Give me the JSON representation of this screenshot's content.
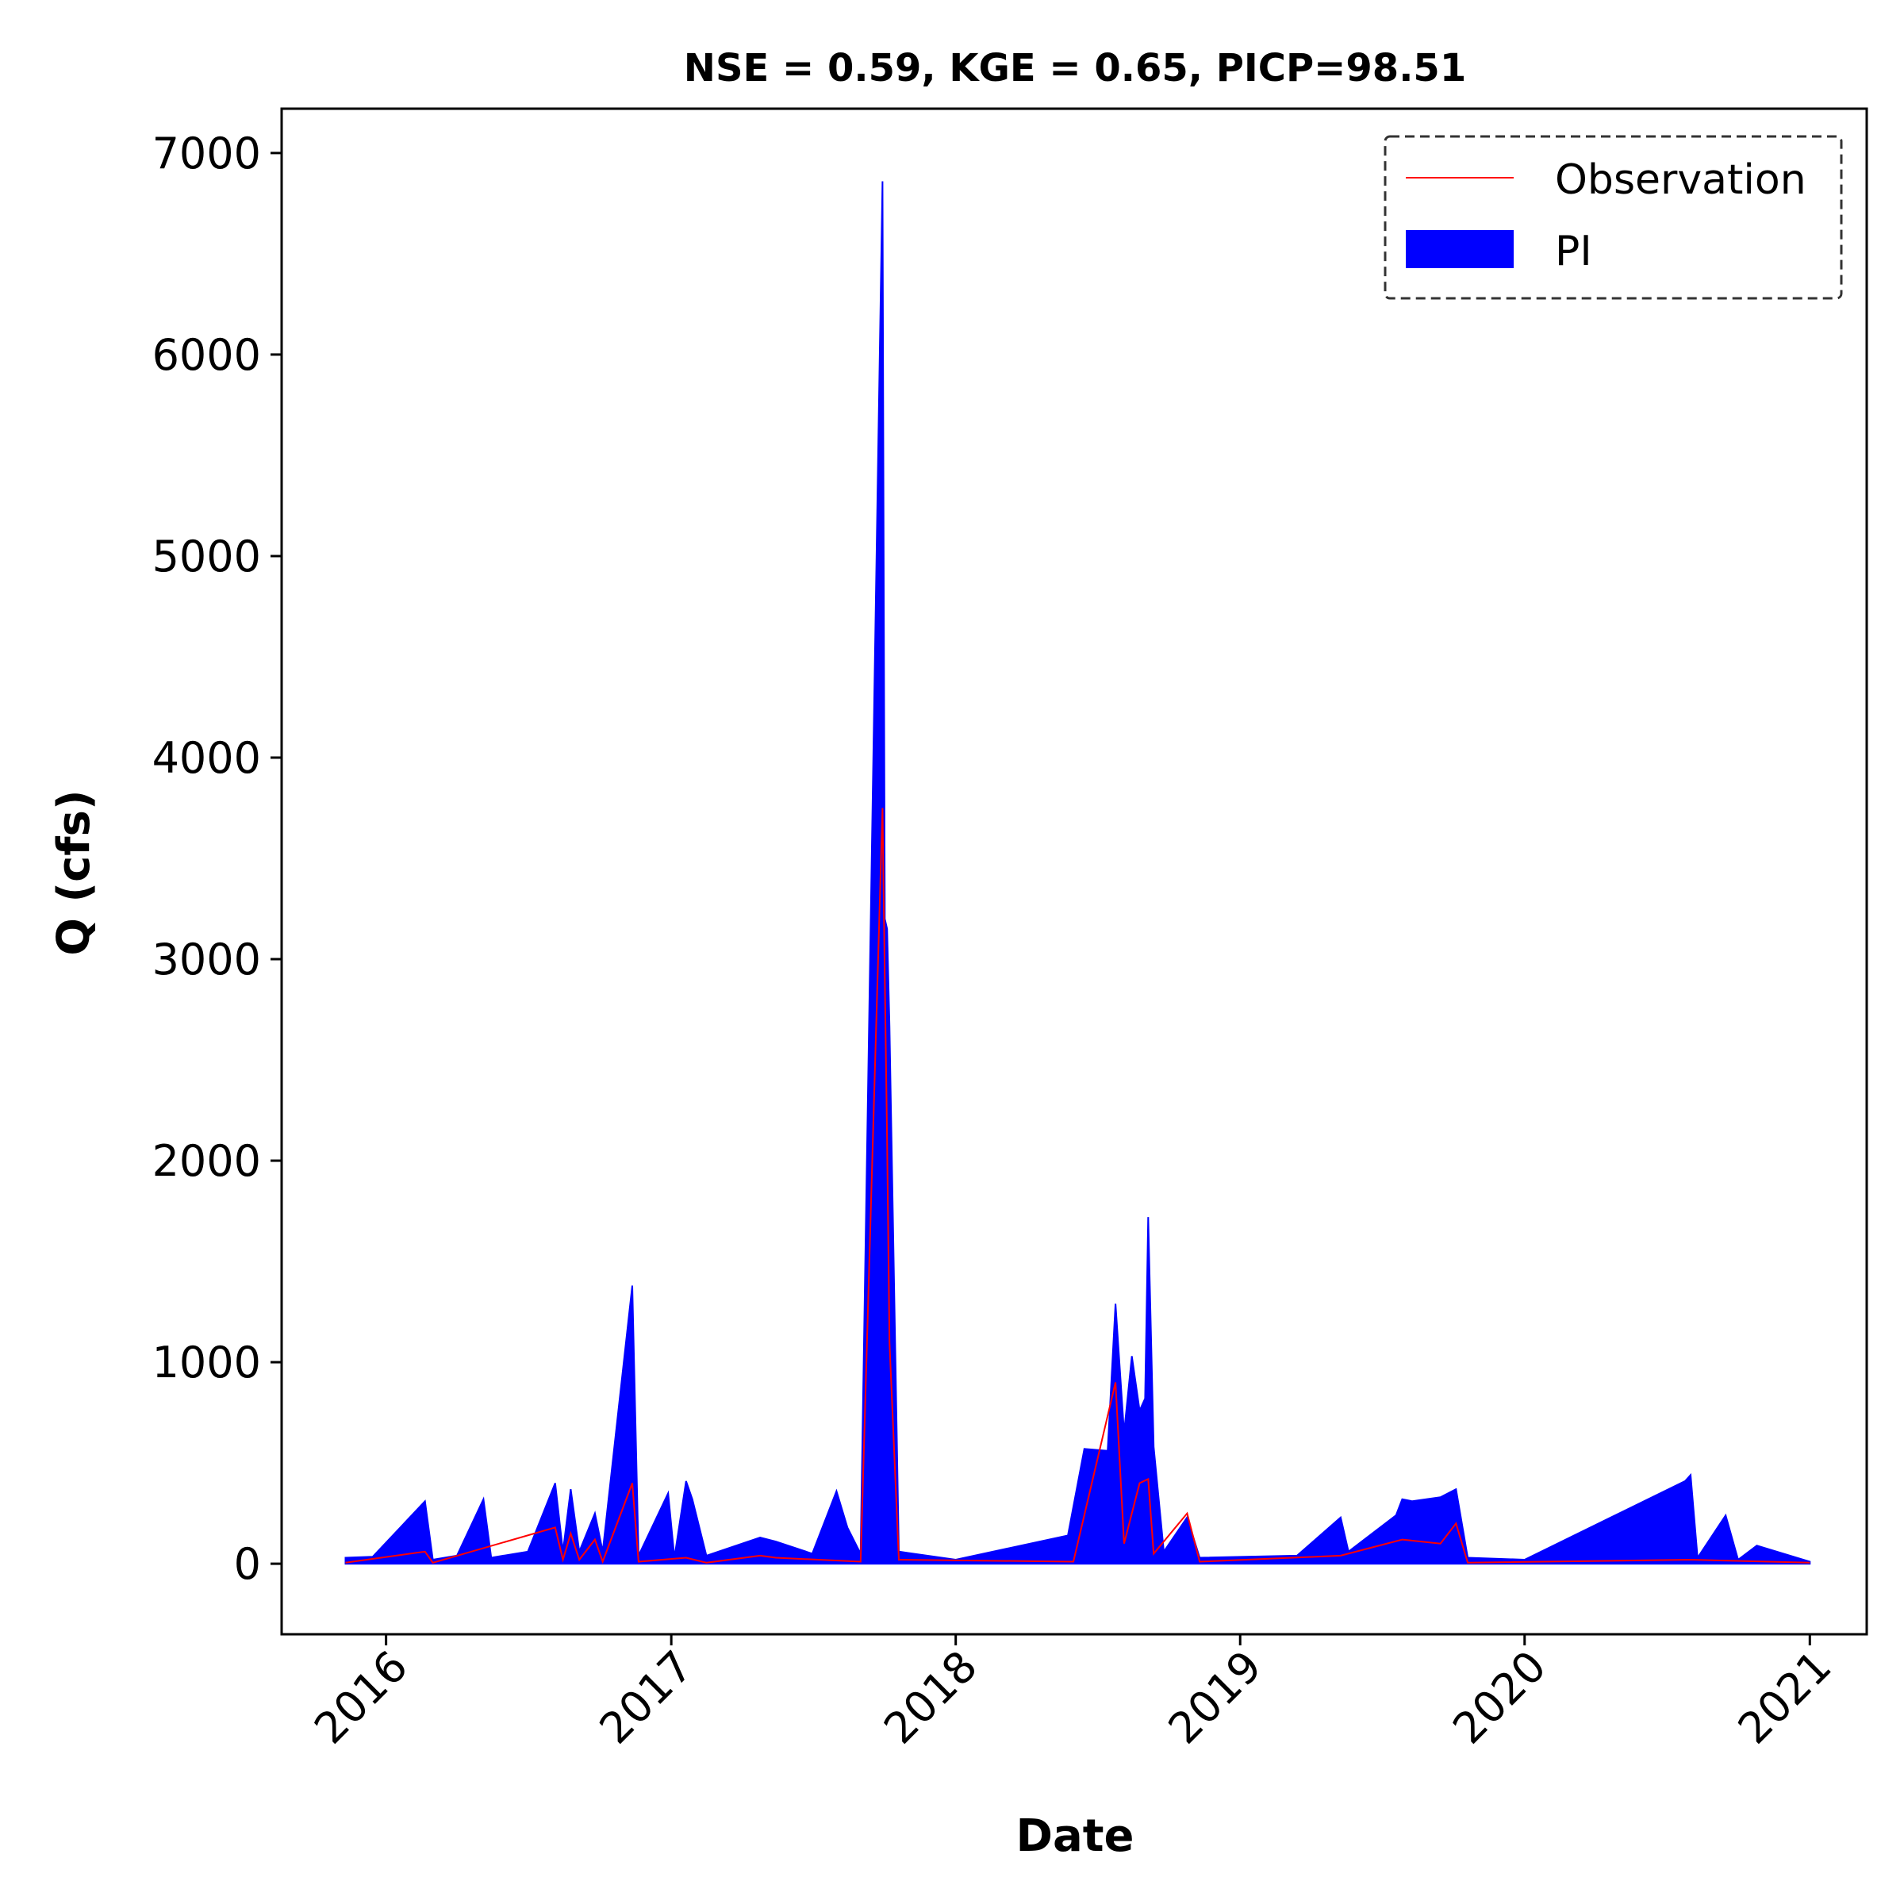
{
  "chart_data": {
    "type": "line",
    "title": "NSE = 0.59, KGE = 0.65, PICP=98.51",
    "xlabel": "Date",
    "ylabel": "Q (cfs)",
    "xlim": [
      "2015-08-20",
      "2021-03-15"
    ],
    "ylim": [
      -350,
      7220
    ],
    "x_ticks": [
      "2016",
      "2017",
      "2018",
      "2019",
      "2020",
      "2021"
    ],
    "y_ticks": [
      "0",
      "1000",
      "2000",
      "3000",
      "4000",
      "5000",
      "6000",
      "7000"
    ],
    "legend": {
      "position": "top-right",
      "border": "dashed"
    },
    "series": [
      {
        "name": "PI",
        "kind": "band",
        "color": "#0000ff",
        "points": [
          [
            "2015-11-10",
            0,
            30
          ],
          [
            "2015-12-15",
            0,
            35
          ],
          [
            "2016-02-20",
            0,
            310
          ],
          [
            "2016-03-01",
            0,
            20
          ],
          [
            "2016-04-01",
            0,
            40
          ],
          [
            "2016-05-05",
            0,
            320
          ],
          [
            "2016-05-15",
            0,
            30
          ],
          [
            "2016-07-01",
            0,
            60
          ],
          [
            "2016-08-05",
            0,
            400
          ],
          [
            "2016-08-15",
            0,
            60
          ],
          [
            "2016-08-25",
            0,
            370
          ],
          [
            "2016-09-05",
            0,
            60
          ],
          [
            "2016-09-25",
            0,
            250
          ],
          [
            "2016-10-05",
            0,
            60
          ],
          [
            "2016-11-12",
            0,
            1380
          ],
          [
            "2016-11-20",
            0,
            40
          ],
          [
            "2016-12-28",
            0,
            350
          ],
          [
            "2017-01-05",
            0,
            30
          ],
          [
            "2017-01-20",
            0,
            410
          ],
          [
            "2017-01-28",
            0,
            320
          ],
          [
            "2017-02-15",
            0,
            40
          ],
          [
            "2017-04-25",
            0,
            130
          ],
          [
            "2017-05-15",
            0,
            110
          ],
          [
            "2017-07-01",
            0,
            50
          ],
          [
            "2017-08-01",
            0,
            360
          ],
          [
            "2017-08-15",
            0,
            180
          ],
          [
            "2017-09-01",
            0,
            50
          ],
          [
            "2017-09-29",
            0,
            6860
          ],
          [
            "2017-10-02",
            0,
            3200
          ],
          [
            "2017-10-05",
            0,
            3150
          ],
          [
            "2017-10-08",
            0,
            2670
          ],
          [
            "2017-10-20",
            0,
            60
          ],
          [
            "2018-01-01",
            0,
            20
          ],
          [
            "2018-05-25",
            0,
            140
          ],
          [
            "2018-06-15",
            0,
            570
          ],
          [
            "2018-07-15",
            0,
            560
          ],
          [
            "2018-07-25",
            0,
            1290
          ],
          [
            "2018-08-05",
            0,
            650
          ],
          [
            "2018-08-15",
            0,
            1030
          ],
          [
            "2018-08-25",
            0,
            760
          ],
          [
            "2018-09-01",
            0,
            820
          ],
          [
            "2018-09-05",
            0,
            1720
          ],
          [
            "2018-09-12",
            0,
            580
          ],
          [
            "2018-09-25",
            0,
            60
          ],
          [
            "2018-10-25",
            0,
            230
          ],
          [
            "2018-11-10",
            0,
            30
          ],
          [
            "2019-03-15",
            0,
            40
          ],
          [
            "2019-05-10",
            0,
            230
          ],
          [
            "2019-05-20",
            0,
            60
          ],
          [
            "2019-07-20",
            0,
            240
          ],
          [
            "2019-07-28",
            0,
            320
          ],
          [
            "2019-08-10",
            0,
            310
          ],
          [
            "2019-09-15",
            0,
            330
          ],
          [
            "2019-10-05",
            0,
            370
          ],
          [
            "2019-10-20",
            0,
            30
          ],
          [
            "2020-01-01",
            0,
            20
          ],
          [
            "2020-07-25",
            0,
            410
          ],
          [
            "2020-08-01",
            0,
            440
          ],
          [
            "2020-08-10",
            0,
            30
          ],
          [
            "2020-09-15",
            0,
            240
          ],
          [
            "2020-10-01",
            0,
            20
          ],
          [
            "2020-10-25",
            0,
            90
          ],
          [
            "2021-01-01",
            0,
            10
          ]
        ]
      },
      {
        "name": "Observation",
        "kind": "line",
        "color": "#ff0000",
        "points": [
          [
            "2015-11-10",
            5
          ],
          [
            "2016-02-20",
            60
          ],
          [
            "2016-03-01",
            5
          ],
          [
            "2016-08-05",
            180
          ],
          [
            "2016-08-15",
            20
          ],
          [
            "2016-08-25",
            150
          ],
          [
            "2016-09-05",
            20
          ],
          [
            "2016-09-25",
            120
          ],
          [
            "2016-10-05",
            10
          ],
          [
            "2016-11-12",
            400
          ],
          [
            "2016-11-20",
            10
          ],
          [
            "2017-01-20",
            30
          ],
          [
            "2017-02-15",
            5
          ],
          [
            "2017-04-25",
            40
          ],
          [
            "2017-05-15",
            30
          ],
          [
            "2017-09-01",
            10
          ],
          [
            "2017-09-29",
            3750
          ],
          [
            "2017-10-02",
            2900
          ],
          [
            "2017-10-05",
            2100
          ],
          [
            "2017-10-08",
            1100
          ],
          [
            "2017-10-20",
            20
          ],
          [
            "2018-06-01",
            10
          ],
          [
            "2018-07-25",
            900
          ],
          [
            "2018-08-05",
            100
          ],
          [
            "2018-08-25",
            400
          ],
          [
            "2018-09-05",
            420
          ],
          [
            "2018-09-12",
            50
          ],
          [
            "2018-10-25",
            250
          ],
          [
            "2018-11-10",
            10
          ],
          [
            "2019-05-10",
            40
          ],
          [
            "2019-07-28",
            120
          ],
          [
            "2019-09-15",
            100
          ],
          [
            "2019-10-05",
            200
          ],
          [
            "2019-10-20",
            5
          ],
          [
            "2020-08-01",
            20
          ],
          [
            "2021-01-01",
            5
          ]
        ]
      }
    ]
  }
}
